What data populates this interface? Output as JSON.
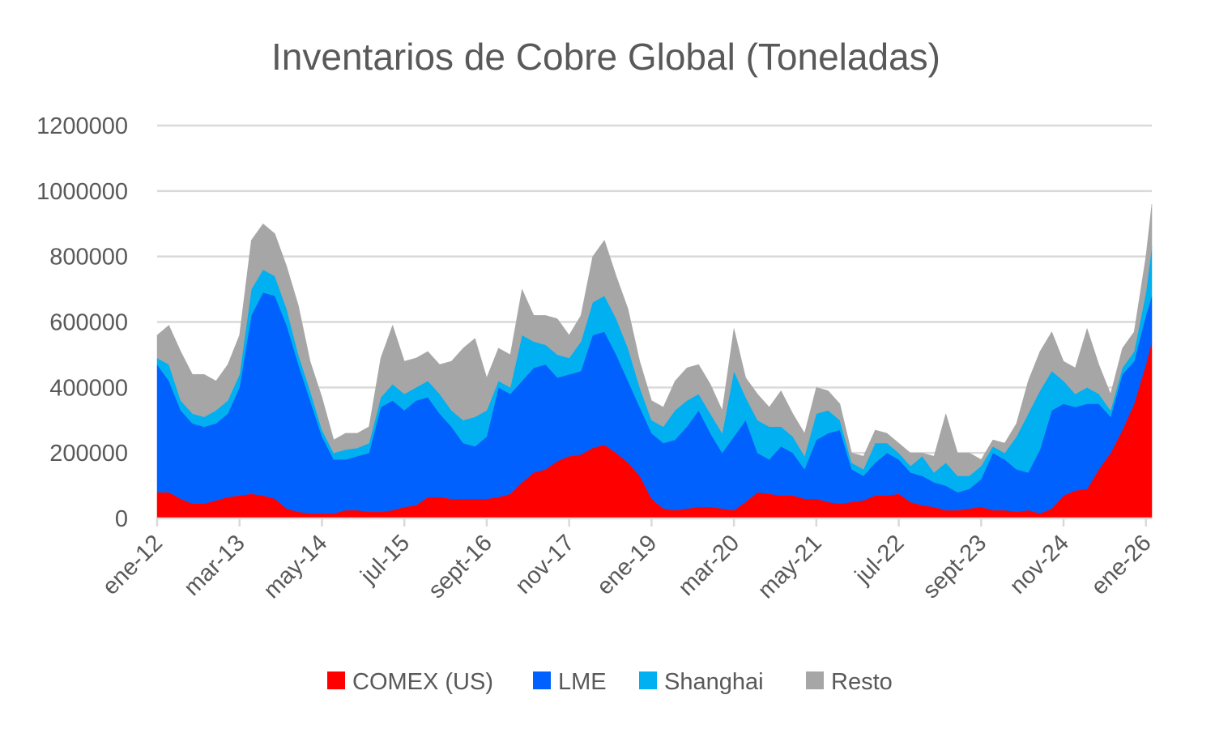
{
  "chart_data": {
    "type": "area",
    "stacked": true,
    "title": "Inventarios de Cobre Global (Toneladas)",
    "xlabel": "",
    "ylabel": "",
    "ylim": [
      0,
      1200000
    ],
    "yticks": [
      "0",
      "200000",
      "400000",
      "600000",
      "800000",
      "1000000",
      "1200000"
    ],
    "xticks": [
      {
        "date": "2012-01",
        "label": "ene-12"
      },
      {
        "date": "2013-03",
        "label": "mar-13"
      },
      {
        "date": "2014-05",
        "label": "may-14"
      },
      {
        "date": "2015-07",
        "label": "jul-15"
      },
      {
        "date": "2016-09",
        "label": "sept-16"
      },
      {
        "date": "2017-11",
        "label": "nov-17"
      },
      {
        "date": "2019-01",
        "label": "ene-19"
      },
      {
        "date": "2020-03",
        "label": "mar-20"
      },
      {
        "date": "2021-05",
        "label": "may-21"
      },
      {
        "date": "2022-07",
        "label": "jul-22"
      },
      {
        "date": "2023-09",
        "label": "sept-23"
      },
      {
        "date": "2024-11",
        "label": "nov-24"
      },
      {
        "date": "2026-01",
        "label": "ene-26"
      }
    ],
    "grid": true,
    "legend_position": "bottom",
    "x": [
      "2012-01",
      "2012-03",
      "2012-05",
      "2012-07",
      "2012-09",
      "2012-11",
      "2013-01",
      "2013-03",
      "2013-05",
      "2013-07",
      "2013-09",
      "2013-11",
      "2014-01",
      "2014-03",
      "2014-05",
      "2014-07",
      "2014-09",
      "2014-11",
      "2015-01",
      "2015-03",
      "2015-05",
      "2015-07",
      "2015-09",
      "2015-11",
      "2016-01",
      "2016-03",
      "2016-05",
      "2016-07",
      "2016-09",
      "2016-11",
      "2017-01",
      "2017-03",
      "2017-05",
      "2017-07",
      "2017-09",
      "2017-11",
      "2018-01",
      "2018-03",
      "2018-05",
      "2018-07",
      "2018-09",
      "2018-11",
      "2019-01",
      "2019-03",
      "2019-05",
      "2019-07",
      "2019-09",
      "2019-11",
      "2020-01",
      "2020-03",
      "2020-05",
      "2020-07",
      "2020-09",
      "2020-11",
      "2021-01",
      "2021-03",
      "2021-05",
      "2021-07",
      "2021-09",
      "2021-11",
      "2022-01",
      "2022-03",
      "2022-05",
      "2022-07",
      "2022-09",
      "2022-11",
      "2023-01",
      "2023-03",
      "2023-05",
      "2023-07",
      "2023-09",
      "2023-11",
      "2024-01",
      "2024-03",
      "2024-05",
      "2024-07",
      "2024-09",
      "2024-11",
      "2025-01",
      "2025-03",
      "2025-05",
      "2025-07",
      "2025-09",
      "2025-11",
      "2026-01",
      "2026-02"
    ],
    "series": [
      {
        "name": "COMEX (US)",
        "color": "#FF0000",
        "values": [
          80000,
          80000,
          60000,
          45000,
          45000,
          55000,
          65000,
          70000,
          75000,
          70000,
          60000,
          30000,
          20000,
          15000,
          15000,
          15000,
          25000,
          25000,
          20000,
          20000,
          25000,
          35000,
          40000,
          65000,
          65000,
          60000,
          60000,
          60000,
          60000,
          65000,
          75000,
          110000,
          140000,
          150000,
          175000,
          190000,
          195000,
          215000,
          225000,
          200000,
          170000,
          130000,
          60000,
          30000,
          25000,
          30000,
          35000,
          35000,
          30000,
          25000,
          50000,
          80000,
          75000,
          70000,
          70000,
          60000,
          60000,
          50000,
          45000,
          50000,
          55000,
          70000,
          70000,
          75000,
          50000,
          40000,
          35000,
          25000,
          25000,
          30000,
          35000,
          25000,
          25000,
          20000,
          25000,
          15000,
          30000,
          70000,
          85000,
          90000,
          150000,
          200000,
          270000,
          350000,
          470000,
          540000
        ]
      },
      {
        "name": "LME",
        "color": "#0061FF",
        "values": [
          390000,
          340000,
          270000,
          245000,
          235000,
          235000,
          255000,
          330000,
          545000,
          620000,
          620000,
          560000,
          450000,
          345000,
          235000,
          165000,
          155000,
          165000,
          180000,
          320000,
          335000,
          295000,
          320000,
          305000,
          255000,
          220000,
          170000,
          160000,
          190000,
          335000,
          305000,
          310000,
          320000,
          320000,
          255000,
          250000,
          255000,
          345000,
          345000,
          300000,
          250000,
          210000,
          200000,
          200000,
          215000,
          250000,
          295000,
          225000,
          170000,
          225000,
          250000,
          120000,
          105000,
          150000,
          130000,
          90000,
          180000,
          210000,
          225000,
          100000,
          75000,
          100000,
          130000,
          105000,
          90000,
          90000,
          75000,
          75000,
          55000,
          60000,
          85000,
          175000,
          155000,
          130000,
          115000,
          195000,
          300000,
          280000,
          255000,
          260000,
          200000,
          110000,
          170000,
          130000,
          150000,
          140000
        ]
      },
      {
        "name": "Shanghai",
        "color": "#00B0F0",
        "values": [
          20000,
          50000,
          30000,
          30000,
          30000,
          40000,
          40000,
          40000,
          80000,
          70000,
          60000,
          50000,
          30000,
          30000,
          20000,
          20000,
          30000,
          25000,
          30000,
          30000,
          50000,
          50000,
          40000,
          50000,
          60000,
          50000,
          70000,
          90000,
          80000,
          20000,
          20000,
          140000,
          80000,
          60000,
          70000,
          50000,
          90000,
          100000,
          110000,
          110000,
          100000,
          60000,
          40000,
          50000,
          90000,
          80000,
          50000,
          60000,
          60000,
          200000,
          70000,
          100000,
          100000,
          60000,
          50000,
          40000,
          80000,
          70000,
          30000,
          20000,
          20000,
          60000,
          30000,
          20000,
          20000,
          60000,
          30000,
          70000,
          50000,
          40000,
          40000,
          20000,
          20000,
          100000,
          180000,
          180000,
          120000,
          70000,
          40000,
          50000,
          30000,
          20000,
          20000,
          30000,
          70000,
          150000
        ]
      },
      {
        "name": "Resto",
        "color": "#A6A6A6",
        "values": [
          70000,
          120000,
          150000,
          120000,
          130000,
          90000,
          110000,
          120000,
          150000,
          140000,
          130000,
          130000,
          150000,
          90000,
          100000,
          40000,
          50000,
          45000,
          50000,
          120000,
          180000,
          100000,
          90000,
          90000,
          90000,
          150000,
          220000,
          240000,
          100000,
          100000,
          100000,
          140000,
          80000,
          90000,
          110000,
          70000,
          80000,
          140000,
          170000,
          130000,
          120000,
          80000,
          60000,
          60000,
          90000,
          100000,
          90000,
          90000,
          70000,
          130000,
          60000,
          80000,
          60000,
          110000,
          70000,
          70000,
          80000,
          60000,
          50000,
          30000,
          40000,
          40000,
          30000,
          30000,
          40000,
          10000,
          50000,
          150000,
          70000,
          70000,
          20000,
          20000,
          30000,
          40000,
          100000,
          120000,
          120000,
          60000,
          80000,
          180000,
          90000,
          50000,
          60000,
          60000,
          110000,
          130000
        ]
      }
    ]
  }
}
